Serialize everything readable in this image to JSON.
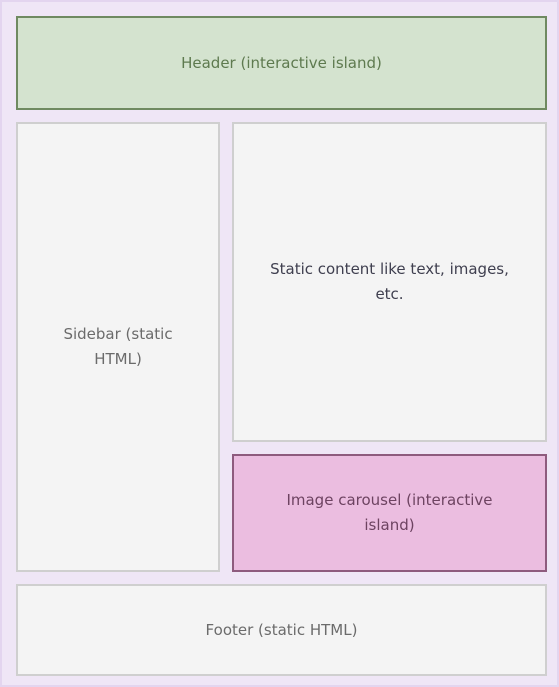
{
  "diagram": {
    "header": {
      "label": "Header (interactive island)"
    },
    "sidebar": {
      "label": "Sidebar (static HTML)"
    },
    "content": {
      "label": "Static content like text, images, etc."
    },
    "carousel": {
      "label": "Image carousel (interactive island)"
    },
    "footer": {
      "label": "Footer (static HTML)"
    }
  },
  "colors": {
    "background": "#efe6f6",
    "interactive_header_fill": "#d4e3cf",
    "interactive_header_border": "#6f8a61",
    "interactive_carousel_fill": "#ebbde0",
    "interactive_carousel_border": "#8e5b7e",
    "static_fill": "#f4f4f4",
    "static_border": "#cfcfcf"
  }
}
